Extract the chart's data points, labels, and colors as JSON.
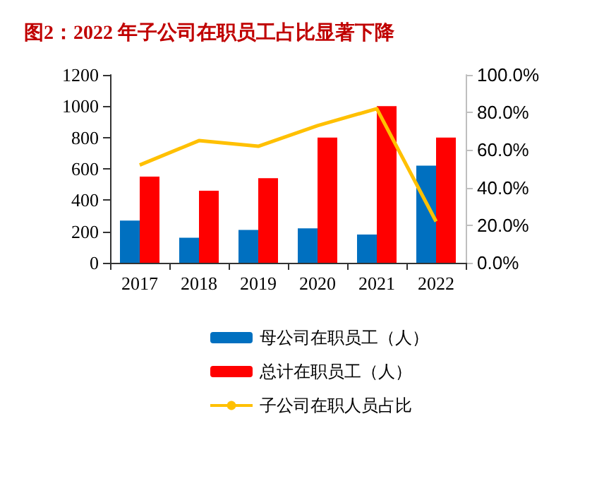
{
  "chart_data": {
    "type": "bar",
    "title": "图2：2022 年子公司在职员工占比显著下降",
    "categories": [
      "2017",
      "2018",
      "2019",
      "2020",
      "2021",
      "2022"
    ],
    "series": [
      {
        "name": "母公司在职员工（人）",
        "color": "#0070c0",
        "values": [
          270,
          160,
          210,
          220,
          180,
          620
        ]
      },
      {
        "name": "总计在职员工（人）",
        "color": "#ff0000",
        "values": [
          550,
          460,
          540,
          800,
          1000,
          800
        ]
      },
      {
        "name": "子公司在职人员占比",
        "type": "line",
        "axis": "y2",
        "color": "#ffc000",
        "values": [
          52,
          65,
          62,
          73,
          82,
          22
        ]
      }
    ],
    "ylim": [
      0,
      1200
    ],
    "yticks": [
      0,
      200,
      400,
      600,
      800,
      1000,
      1200
    ],
    "y2lim": [
      0,
      100
    ],
    "y2ticks": [
      {
        "value": 0,
        "label": "0.0%"
      },
      {
        "value": 20,
        "label": "20.0%"
      },
      {
        "value": 40,
        "label": "40.0%"
      },
      {
        "value": 60,
        "label": "60.0%"
      },
      {
        "value": 80,
        "label": "80.0%"
      },
      {
        "value": 100,
        "label": "100.0%"
      }
    ],
    "grid": false,
    "legend": "bottom",
    "marker": "none",
    "line_style": "solid"
  }
}
